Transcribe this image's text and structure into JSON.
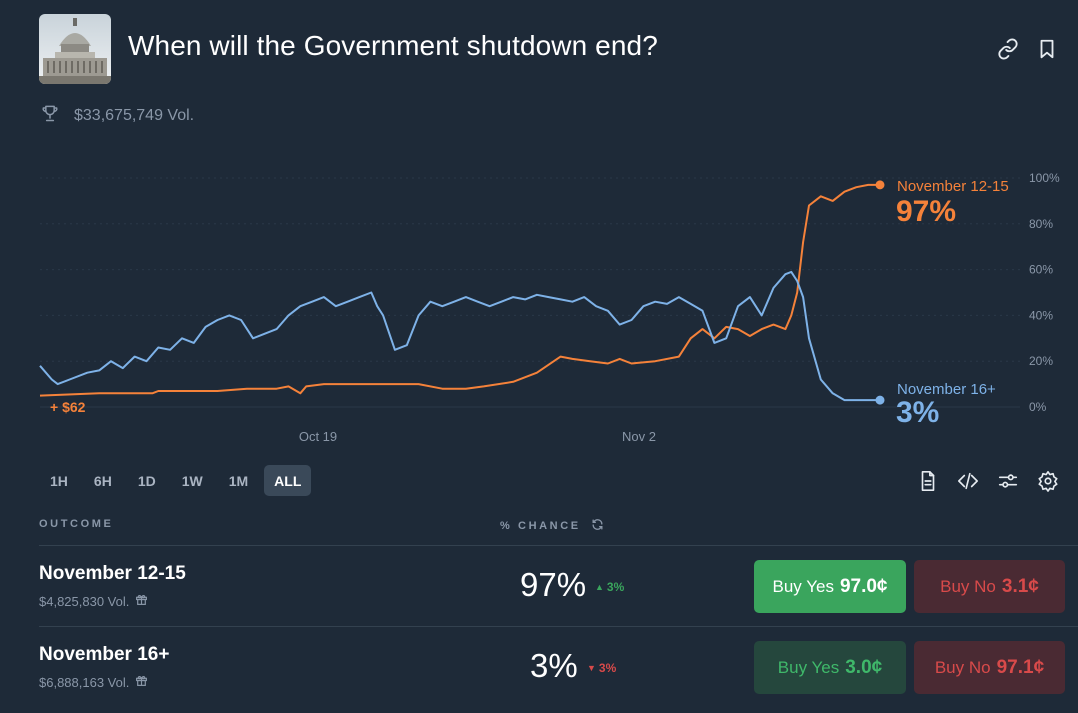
{
  "header": {
    "title": "When will the Government shutdown end?",
    "volume": "$33,675,749 Vol."
  },
  "colors": {
    "orange": "#f5823a",
    "blue": "#7eb2e8",
    "green": "#3aa55d",
    "red": "#d84a4a",
    "bg": "#1e2a38"
  },
  "chart_data": {
    "type": "line",
    "x_tick_labels": [
      "Oct 19",
      "Nov 2"
    ],
    "y_tick_labels": [
      "100%",
      "80%",
      "60%",
      "40%",
      "20%",
      "0%"
    ],
    "ylim": [
      0,
      100
    ],
    "annotation": "+ $62",
    "series": [
      {
        "name": "November 12-15",
        "color": "#f5823a",
        "end_label": "97%",
        "points": [
          [
            0,
            5
          ],
          [
            10,
            6
          ],
          [
            19,
            6
          ],
          [
            20,
            7
          ],
          [
            30,
            7
          ],
          [
            35,
            8
          ],
          [
            40,
            8
          ],
          [
            42,
            9
          ],
          [
            44,
            6
          ],
          [
            45,
            9
          ],
          [
            48,
            10
          ],
          [
            50,
            10
          ],
          [
            55,
            10
          ],
          [
            60,
            10
          ],
          [
            64,
            10
          ],
          [
            68,
            8
          ],
          [
            72,
            8
          ],
          [
            75,
            9
          ],
          [
            80,
            11
          ],
          [
            84,
            15
          ],
          [
            88,
            22
          ],
          [
            90,
            21
          ],
          [
            93,
            20
          ],
          [
            96,
            19
          ],
          [
            98,
            21
          ],
          [
            100,
            19
          ],
          [
            104,
            20
          ],
          [
            108,
            22
          ],
          [
            110,
            30
          ],
          [
            112,
            34
          ],
          [
            114,
            30
          ],
          [
            116,
            35
          ],
          [
            118,
            34
          ],
          [
            120,
            31
          ],
          [
            122,
            34
          ],
          [
            124,
            36
          ],
          [
            126,
            34
          ],
          [
            127,
            40
          ],
          [
            128,
            50
          ],
          [
            129,
            72
          ],
          [
            130,
            88
          ],
          [
            132,
            92
          ],
          [
            134,
            90
          ],
          [
            136,
            94
          ],
          [
            138,
            96
          ],
          [
            140,
            97
          ],
          [
            142,
            97
          ]
        ]
      },
      {
        "name": "November 16+",
        "color": "#7eb2e8",
        "end_label": "3%",
        "points": [
          [
            0,
            18
          ],
          [
            2,
            12
          ],
          [
            3,
            10
          ],
          [
            5,
            12
          ],
          [
            8,
            15
          ],
          [
            10,
            16
          ],
          [
            12,
            20
          ],
          [
            14,
            17
          ],
          [
            16,
            22
          ],
          [
            18,
            20
          ],
          [
            20,
            26
          ],
          [
            22,
            25
          ],
          [
            24,
            30
          ],
          [
            26,
            28
          ],
          [
            28,
            35
          ],
          [
            30,
            38
          ],
          [
            32,
            40
          ],
          [
            34,
            38
          ],
          [
            36,
            30
          ],
          [
            38,
            32
          ],
          [
            40,
            34
          ],
          [
            42,
            40
          ],
          [
            44,
            44
          ],
          [
            46,
            46
          ],
          [
            48,
            48
          ],
          [
            50,
            44
          ],
          [
            52,
            46
          ],
          [
            54,
            48
          ],
          [
            56,
            50
          ],
          [
            57,
            44
          ],
          [
            58,
            40
          ],
          [
            60,
            25
          ],
          [
            62,
            27
          ],
          [
            64,
            40
          ],
          [
            66,
            46
          ],
          [
            68,
            44
          ],
          [
            70,
            46
          ],
          [
            72,
            48
          ],
          [
            74,
            46
          ],
          [
            76,
            44
          ],
          [
            78,
            46
          ],
          [
            80,
            48
          ],
          [
            82,
            47
          ],
          [
            84,
            49
          ],
          [
            86,
            48
          ],
          [
            88,
            47
          ],
          [
            90,
            46
          ],
          [
            92,
            48
          ],
          [
            94,
            44
          ],
          [
            96,
            42
          ],
          [
            98,
            36
          ],
          [
            100,
            38
          ],
          [
            102,
            44
          ],
          [
            104,
            46
          ],
          [
            106,
            45
          ],
          [
            108,
            48
          ],
          [
            110,
            45
          ],
          [
            112,
            42
          ],
          [
            114,
            28
          ],
          [
            116,
            30
          ],
          [
            118,
            44
          ],
          [
            120,
            48
          ],
          [
            122,
            40
          ],
          [
            124,
            52
          ],
          [
            126,
            58
          ],
          [
            127,
            59
          ],
          [
            128,
            55
          ],
          [
            129,
            48
          ],
          [
            130,
            30
          ],
          [
            132,
            12
          ],
          [
            134,
            6
          ],
          [
            136,
            3
          ],
          [
            140,
            3
          ],
          [
            142,
            3
          ]
        ]
      }
    ]
  },
  "range_buttons": [
    "1H",
    "6H",
    "1D",
    "1W",
    "1M",
    "ALL"
  ],
  "active_range": "ALL",
  "table": {
    "col_outcome": "OUTCOME",
    "col_chance": "% CHANCE",
    "rows": [
      {
        "name": "November 12-15",
        "volume": "$4,825,830 Vol.",
        "chance": "97%",
        "delta": "3%",
        "delta_dir": "up",
        "yes_label": "Buy Yes",
        "yes_price": "97.0¢",
        "no_label": "Buy No",
        "no_price": "3.1¢"
      },
      {
        "name": "November 16+",
        "volume": "$6,888,163 Vol.",
        "chance": "3%",
        "delta": "3%",
        "delta_dir": "down",
        "yes_label": "Buy Yes",
        "yes_price": "3.0¢",
        "no_label": "Buy No",
        "no_price": "97.1¢"
      }
    ]
  }
}
